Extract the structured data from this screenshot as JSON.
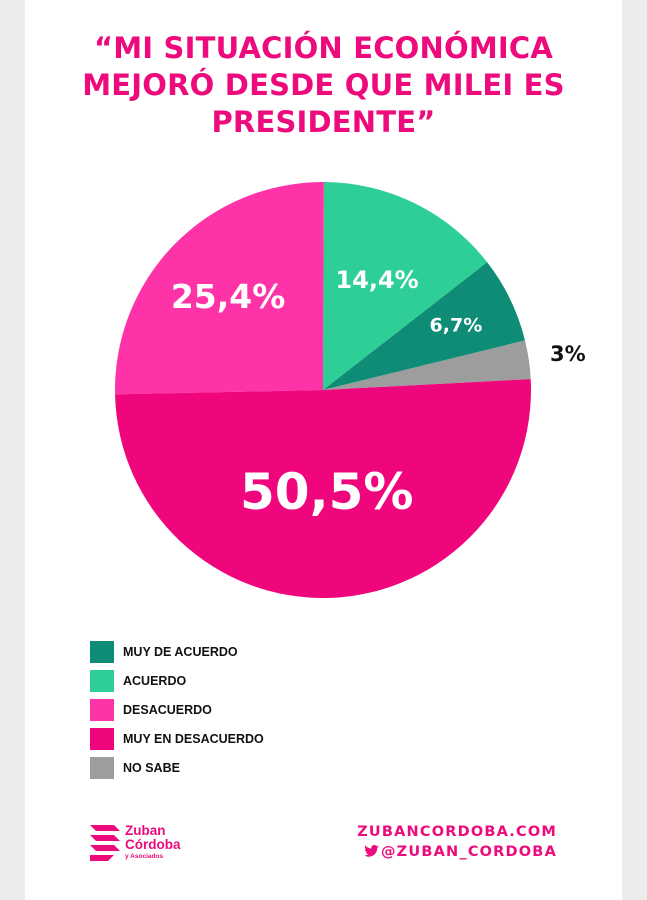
{
  "colors": {
    "brand": "#ec0a7c",
    "muy_de_acuerdo": "#0e8c76",
    "acuerdo": "#2ecf96",
    "desacuerdo": "#ff33a8",
    "muy_en_desacuerdo": "#f0067c",
    "no_sabe": "#9d9d9d"
  },
  "title_lines": [
    "“MI SITUACIÓN ECONÓMICA",
    "MEJORÓ DESDE QUE MILEI ES",
    "PRESIDENTE”"
  ],
  "chart_data": {
    "type": "pie",
    "title": "“MI SITUACIÓN ECONÓMICA MEJORÓ DESDE QUE MILEI ES PRESIDENTE”",
    "legend_position": "bottom-left",
    "slices": [
      {
        "label": "NO SABE",
        "value": 3,
        "value_label": "3%",
        "color": "#9d9d9d"
      },
      {
        "label": "MUY DE ACUERDO",
        "value": 6.7,
        "value_label": "6,7%",
        "color": "#0e8c76"
      },
      {
        "label": "ACUERDO",
        "value": 14.4,
        "value_label": "14,4%",
        "color": "#2ecf96"
      },
      {
        "label": "DESACUERDO",
        "value": 25.4,
        "value_label": "25,4%",
        "color": "#ff33a8"
      },
      {
        "label": "MUY EN DESACUERDO",
        "value": 50.5,
        "value_label": "50,5%",
        "color": "#f0067c"
      }
    ]
  },
  "legend": [
    {
      "label": "MUY DE ACUERDO",
      "color": "#0e8c76"
    },
    {
      "label": "ACUERDO",
      "color": "#2ecf96"
    },
    {
      "label": "DESACUERDO",
      "color": "#ff33a8"
    },
    {
      "label": "MUY EN DESACUERDO",
      "color": "#f0067c"
    },
    {
      "label": "NO SABE",
      "color": "#9d9d9d"
    }
  ],
  "footer": {
    "logo_line1": "Zuban",
    "logo_line2": "Córdoba",
    "logo_line3": "y Asociados",
    "website": "ZUBANCORDOBA.COM",
    "twitter": "@ZUBAN_CORDOBA",
    "twitter_icon": "twitter-bird-icon"
  }
}
